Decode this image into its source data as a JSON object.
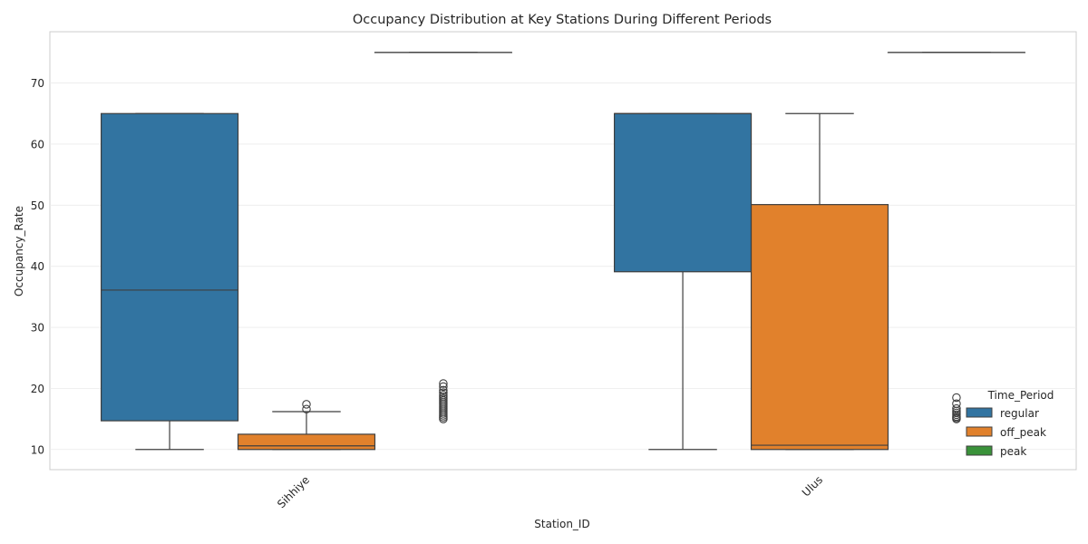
{
  "chart_data": {
    "type": "boxplot",
    "title": "Occupancy Distribution at Key Stations During Different Periods",
    "xlabel": "Station_ID",
    "ylabel": "Occupancy_Rate",
    "categories": [
      "Sihhiye",
      "Ulus"
    ],
    "ylim": [
      6.7,
      78.4
    ],
    "yticks": [
      10,
      20,
      30,
      40,
      50,
      60,
      70
    ],
    "grid": true,
    "legend": {
      "title": "Time_Period",
      "position": "bottom-right"
    },
    "series": [
      {
        "name": "regular",
        "color": "#3274a1",
        "boxes": [
          {
            "category": "Sihhiye",
            "whisker_low": 10,
            "q1": 14.7,
            "median": 36.1,
            "q3": 65,
            "whisker_high": 65,
            "outliers": []
          },
          {
            "category": "Ulus",
            "whisker_low": 10,
            "q1": 39.1,
            "median": 65,
            "q3": 65,
            "whisker_high": 65,
            "outliers": []
          }
        ]
      },
      {
        "name": "off_peak",
        "color": "#e1812c",
        "boxes": [
          {
            "category": "Sihhiye",
            "whisker_low": 10,
            "q1": 10,
            "median": 10.6,
            "q3": 12.5,
            "whisker_high": 16.2,
            "outliers": [
              16.6,
              17.4
            ]
          },
          {
            "category": "Ulus",
            "whisker_low": 10,
            "q1": 10,
            "median": 10.7,
            "q3": 50.1,
            "whisker_high": 65,
            "outliers": []
          }
        ]
      },
      {
        "name": "peak",
        "color": "#3a923a",
        "boxes": [
          {
            "category": "Sihhiye",
            "whisker_low": 75,
            "q1": 75,
            "median": 75,
            "q3": 75,
            "whisker_high": 75,
            "outliers": [
              15,
              15.3,
              15.6,
              15.9,
              16.2,
              16.5,
              16.8,
              17.1,
              17.4,
              17.7,
              18,
              18.3,
              18.6,
              18.9,
              19.3,
              19.7,
              20.3,
              20.8
            ]
          },
          {
            "category": "Ulus",
            "whisker_low": 75,
            "q1": 75,
            "median": 75,
            "q3": 75,
            "whisker_high": 75,
            "outliers": [
              15,
              15.2,
              15.4,
              15.7,
              16,
              16.3,
              16.7,
              17.5,
              18.5
            ]
          }
        ]
      }
    ]
  }
}
